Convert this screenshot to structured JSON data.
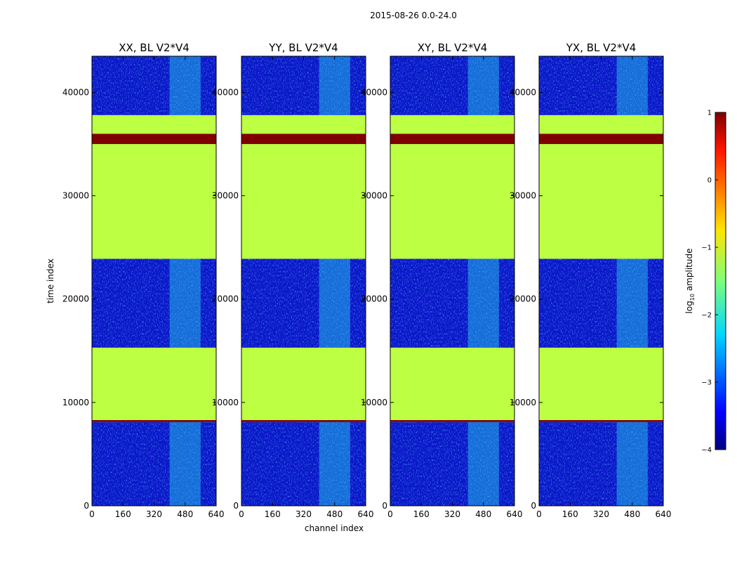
{
  "chart_data": {
    "type": "heatmap",
    "title": "2015-08-26 0.0-24.0",
    "xlabel": "channel index",
    "ylabel": "time index",
    "xlim": [
      0,
      640
    ],
    "ylim": [
      0,
      43500
    ],
    "x_ticks": [
      0,
      160,
      320,
      480,
      640
    ],
    "y_ticks": [
      0,
      10000,
      20000,
      30000,
      40000
    ],
    "colorscale": "jet",
    "panels": [
      {
        "title": "XX, BL V2*V4",
        "xticks_label": [
          "0",
          "160",
          "320",
          "480",
          "640"
        ],
        "yticks_label": [
          "0",
          "10000",
          "20000",
          "30000",
          "40000"
        ]
      },
      {
        "title": "YY, BL V2*V4",
        "xticks_label": [
          "0",
          "160",
          "320",
          "480",
          "640"
        ],
        "yticks_label": [
          "0",
          "10000",
          "20000",
          "30000",
          "40000"
        ]
      },
      {
        "title": "XY, BL V2*V4",
        "xticks_label": [
          "0",
          "160",
          "320",
          "480",
          "640"
        ],
        "yticks_label": [
          "0",
          "10000",
          "20000",
          "30000",
          "40000"
        ]
      },
      {
        "title": "YX, BL V2*V4",
        "xticks_label": [
          "0",
          "160",
          "320",
          "480",
          "640"
        ],
        "yticks_label": [
          "0",
          "10000",
          "20000",
          "30000",
          "40000"
        ]
      }
    ],
    "bands": [
      {
        "t0": 0,
        "t1": 8100,
        "kind": "noise"
      },
      {
        "t0": 8100,
        "t1": 8300,
        "kind": "flag"
      },
      {
        "t0": 8300,
        "t1": 15300,
        "kind": "flat",
        "value": -1.2
      },
      {
        "t0": 15300,
        "t1": 23900,
        "kind": "noise"
      },
      {
        "t0": 23900,
        "t1": 35000,
        "kind": "flat",
        "value": -1.2
      },
      {
        "t0": 35000,
        "t1": 36000,
        "kind": "flag"
      },
      {
        "t0": 36000,
        "t1": 37800,
        "kind": "flat",
        "value": -1.2
      },
      {
        "t0": 37800,
        "t1": 43500,
        "kind": "noise"
      }
    ],
    "hot_channels": [
      [
        400,
        560
      ]
    ],
    "colorbar": {
      "label": "log10 amplitude",
      "range": [
        -4,
        1
      ],
      "ticks": [
        1,
        0,
        -1,
        -2,
        -3,
        -4
      ],
      "tick_labels": [
        "1",
        "0",
        "−1",
        "−2",
        "−3",
        "−4"
      ]
    }
  }
}
